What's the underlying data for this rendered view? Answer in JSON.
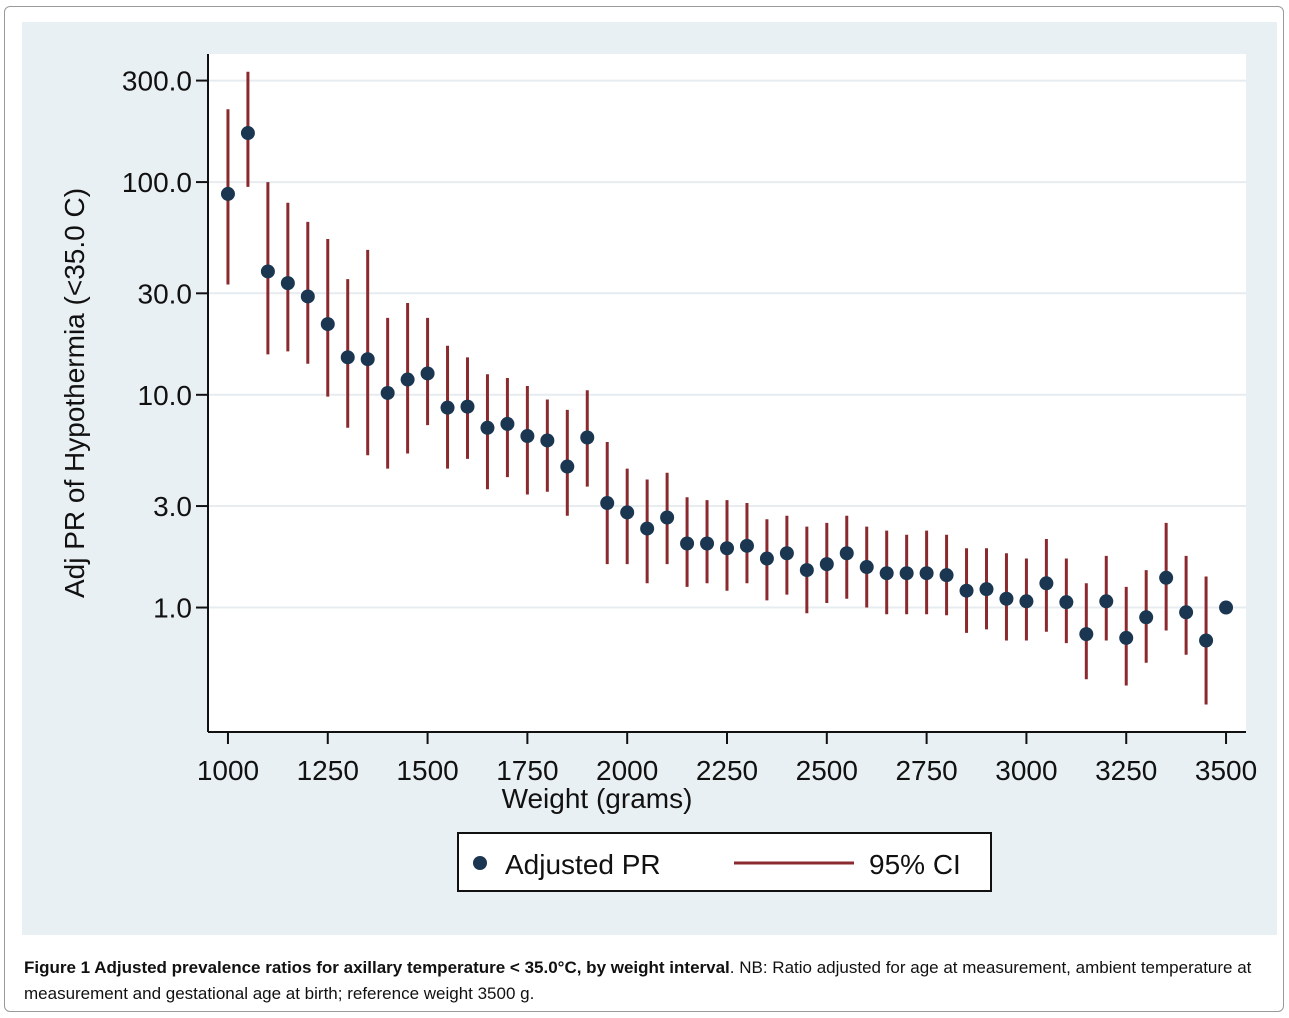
{
  "chart_data": {
    "type": "scatter",
    "ylabel": "Adj PR of Hypothermia (<35.0 C)",
    "xlabel": "Weight (grams)",
    "yscale": "log",
    "xlim": [
      950,
      3550
    ],
    "ylim": [
      0.26,
      400
    ],
    "xticks": [
      1000,
      1250,
      1500,
      1750,
      2000,
      2250,
      2500,
      2750,
      3000,
      3250,
      3500
    ],
    "xtick_labels": [
      "1000",
      "1250",
      "1500",
      "1750",
      "2000",
      "2250",
      "2500",
      "2750",
      "3000",
      "3250",
      "3500"
    ],
    "yticks": [
      1,
      3,
      10,
      30,
      100,
      300
    ],
    "ytick_labels": [
      "1.0",
      "3.0",
      "10.0",
      "30.0",
      "100.0",
      "300.0"
    ],
    "grid": true,
    "legend_position": "bottom",
    "legend": [
      "Adjusted PR",
      "95% CI"
    ],
    "colors": {
      "point": "#1a3650",
      "ci": "#8a2a2e",
      "panel": "#e9f0f3"
    },
    "series": [
      {
        "name": "Adjusted PR",
        "role": "point",
        "x": [
          1000,
          1050,
          1100,
          1150,
          1200,
          1250,
          1300,
          1350,
          1400,
          1450,
          1500,
          1550,
          1600,
          1650,
          1700,
          1750,
          1800,
          1850,
          1900,
          1950,
          2000,
          2050,
          2100,
          2150,
          2200,
          2250,
          2300,
          2350,
          2400,
          2450,
          2500,
          2550,
          2600,
          2650,
          2700,
          2750,
          2800,
          2850,
          2900,
          2950,
          3000,
          3050,
          3100,
          3150,
          3200,
          3250,
          3300,
          3350,
          3400,
          3450,
          3500
        ],
        "y": [
          88,
          170,
          38,
          33.5,
          29,
          21.5,
          15,
          14.7,
          10.2,
          11.8,
          12.6,
          8.7,
          8.8,
          7,
          7.3,
          6.4,
          6.1,
          4.6,
          6.3,
          3.1,
          2.8,
          2.35,
          2.65,
          2,
          2,
          1.9,
          1.95,
          1.7,
          1.8,
          1.5,
          1.6,
          1.8,
          1.55,
          1.45,
          1.45,
          1.45,
          1.42,
          1.2,
          1.22,
          1.1,
          1.07,
          1.3,
          1.06,
          0.75,
          1.07,
          0.72,
          0.9,
          1.38,
          0.95,
          0.7,
          1.0
        ]
      },
      {
        "name": "95% CI",
        "role": "interval",
        "x": [
          1000,
          1050,
          1100,
          1150,
          1200,
          1250,
          1300,
          1350,
          1400,
          1450,
          1500,
          1550,
          1600,
          1650,
          1700,
          1750,
          1800,
          1850,
          1900,
          1950,
          2000,
          2050,
          2100,
          2150,
          2200,
          2250,
          2300,
          2350,
          2400,
          2450,
          2500,
          2550,
          2600,
          2650,
          2700,
          2750,
          2800,
          2850,
          2900,
          2950,
          3000,
          3050,
          3100,
          3150,
          3200,
          3250,
          3300,
          3350,
          3400,
          3450
        ],
        "lower": [
          33,
          95,
          15.5,
          16,
          14,
          9.8,
          7,
          5.2,
          4.5,
          5.3,
          7.2,
          4.5,
          5,
          3.6,
          4.1,
          3.4,
          3.5,
          2.7,
          3.7,
          1.6,
          1.6,
          1.3,
          1.6,
          1.25,
          1.3,
          1.2,
          1.3,
          1.08,
          1.15,
          0.94,
          1.05,
          1.1,
          1,
          0.93,
          0.93,
          0.93,
          0.92,
          0.76,
          0.79,
          0.7,
          0.7,
          0.77,
          0.68,
          0.46,
          0.7,
          0.43,
          0.55,
          0.78,
          0.6,
          0.35
        ],
        "upper": [
          220,
          330,
          100,
          80,
          65,
          54,
          35,
          48,
          23,
          27,
          23,
          17,
          15,
          12.5,
          12,
          11,
          9.5,
          8.5,
          10.5,
          6,
          4.5,
          4,
          4.3,
          3.3,
          3.2,
          3.2,
          3.1,
          2.6,
          2.7,
          2.4,
          2.5,
          2.7,
          2.4,
          2.3,
          2.2,
          2.3,
          2.2,
          1.9,
          1.9,
          1.8,
          1.7,
          2.1,
          1.7,
          1.3,
          1.75,
          1.25,
          1.5,
          2.5,
          1.75,
          1.4
        ]
      }
    ]
  },
  "caption": {
    "lead": "Figure 1 Adjusted prevalence ratios for axillary temperature < 35.0°C, by weight interval",
    "rest": ". NB: Ratio adjusted for age at measurement, ambient temperature at measurement and gestational age at birth; reference weight 3500 g."
  }
}
